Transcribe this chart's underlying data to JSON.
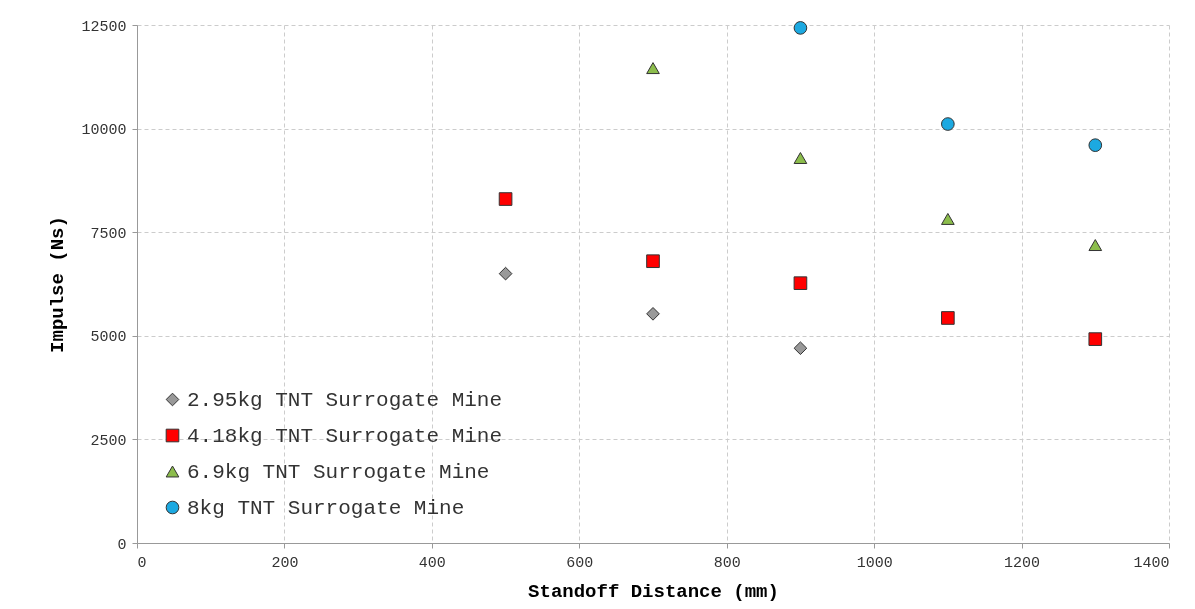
{
  "chart_data": {
    "type": "scatter",
    "xlabel": "Standoff Distance (mm)",
    "ylabel": "Impulse (Ns)",
    "xlim": [
      0,
      1400
    ],
    "xticks": [
      0,
      200,
      400,
      600,
      800,
      1000,
      1200,
      1400
    ],
    "ylim": [
      0,
      12500
    ],
    "yticks": [
      0,
      2500,
      5000,
      7500,
      10000,
      12500
    ],
    "grid": true,
    "legend": "bottom left",
    "series": [
      {
        "name": "2.95kg TNT Surrogate Mine",
        "color": "#999999",
        "marker": "diamond",
        "x": [
          500,
          700,
          900
        ],
        "values": [
          6500,
          5530,
          4700
        ]
      },
      {
        "name": "4.18kg TNT Surrogate Mine",
        "color": "#ff0000",
        "marker": "square",
        "x": [
          500,
          700,
          900,
          1100,
          1300
        ],
        "values": [
          8300,
          6800,
          6270,
          5430,
          4920
        ]
      },
      {
        "name": "6.9kg TNT Surrogate Mine",
        "color": "#8cbd4c",
        "marker": "triangle",
        "x": [
          700,
          900,
          1100,
          1300
        ],
        "values": [
          11460,
          9290,
          7820,
          7190
        ]
      },
      {
        "name": "8kg TNT Surrogate Mine",
        "color": "#1ca9e1",
        "marker": "circle",
        "x": [
          900,
          1100,
          1300
        ],
        "values": [
          12430,
          10110,
          9600
        ]
      }
    ]
  }
}
